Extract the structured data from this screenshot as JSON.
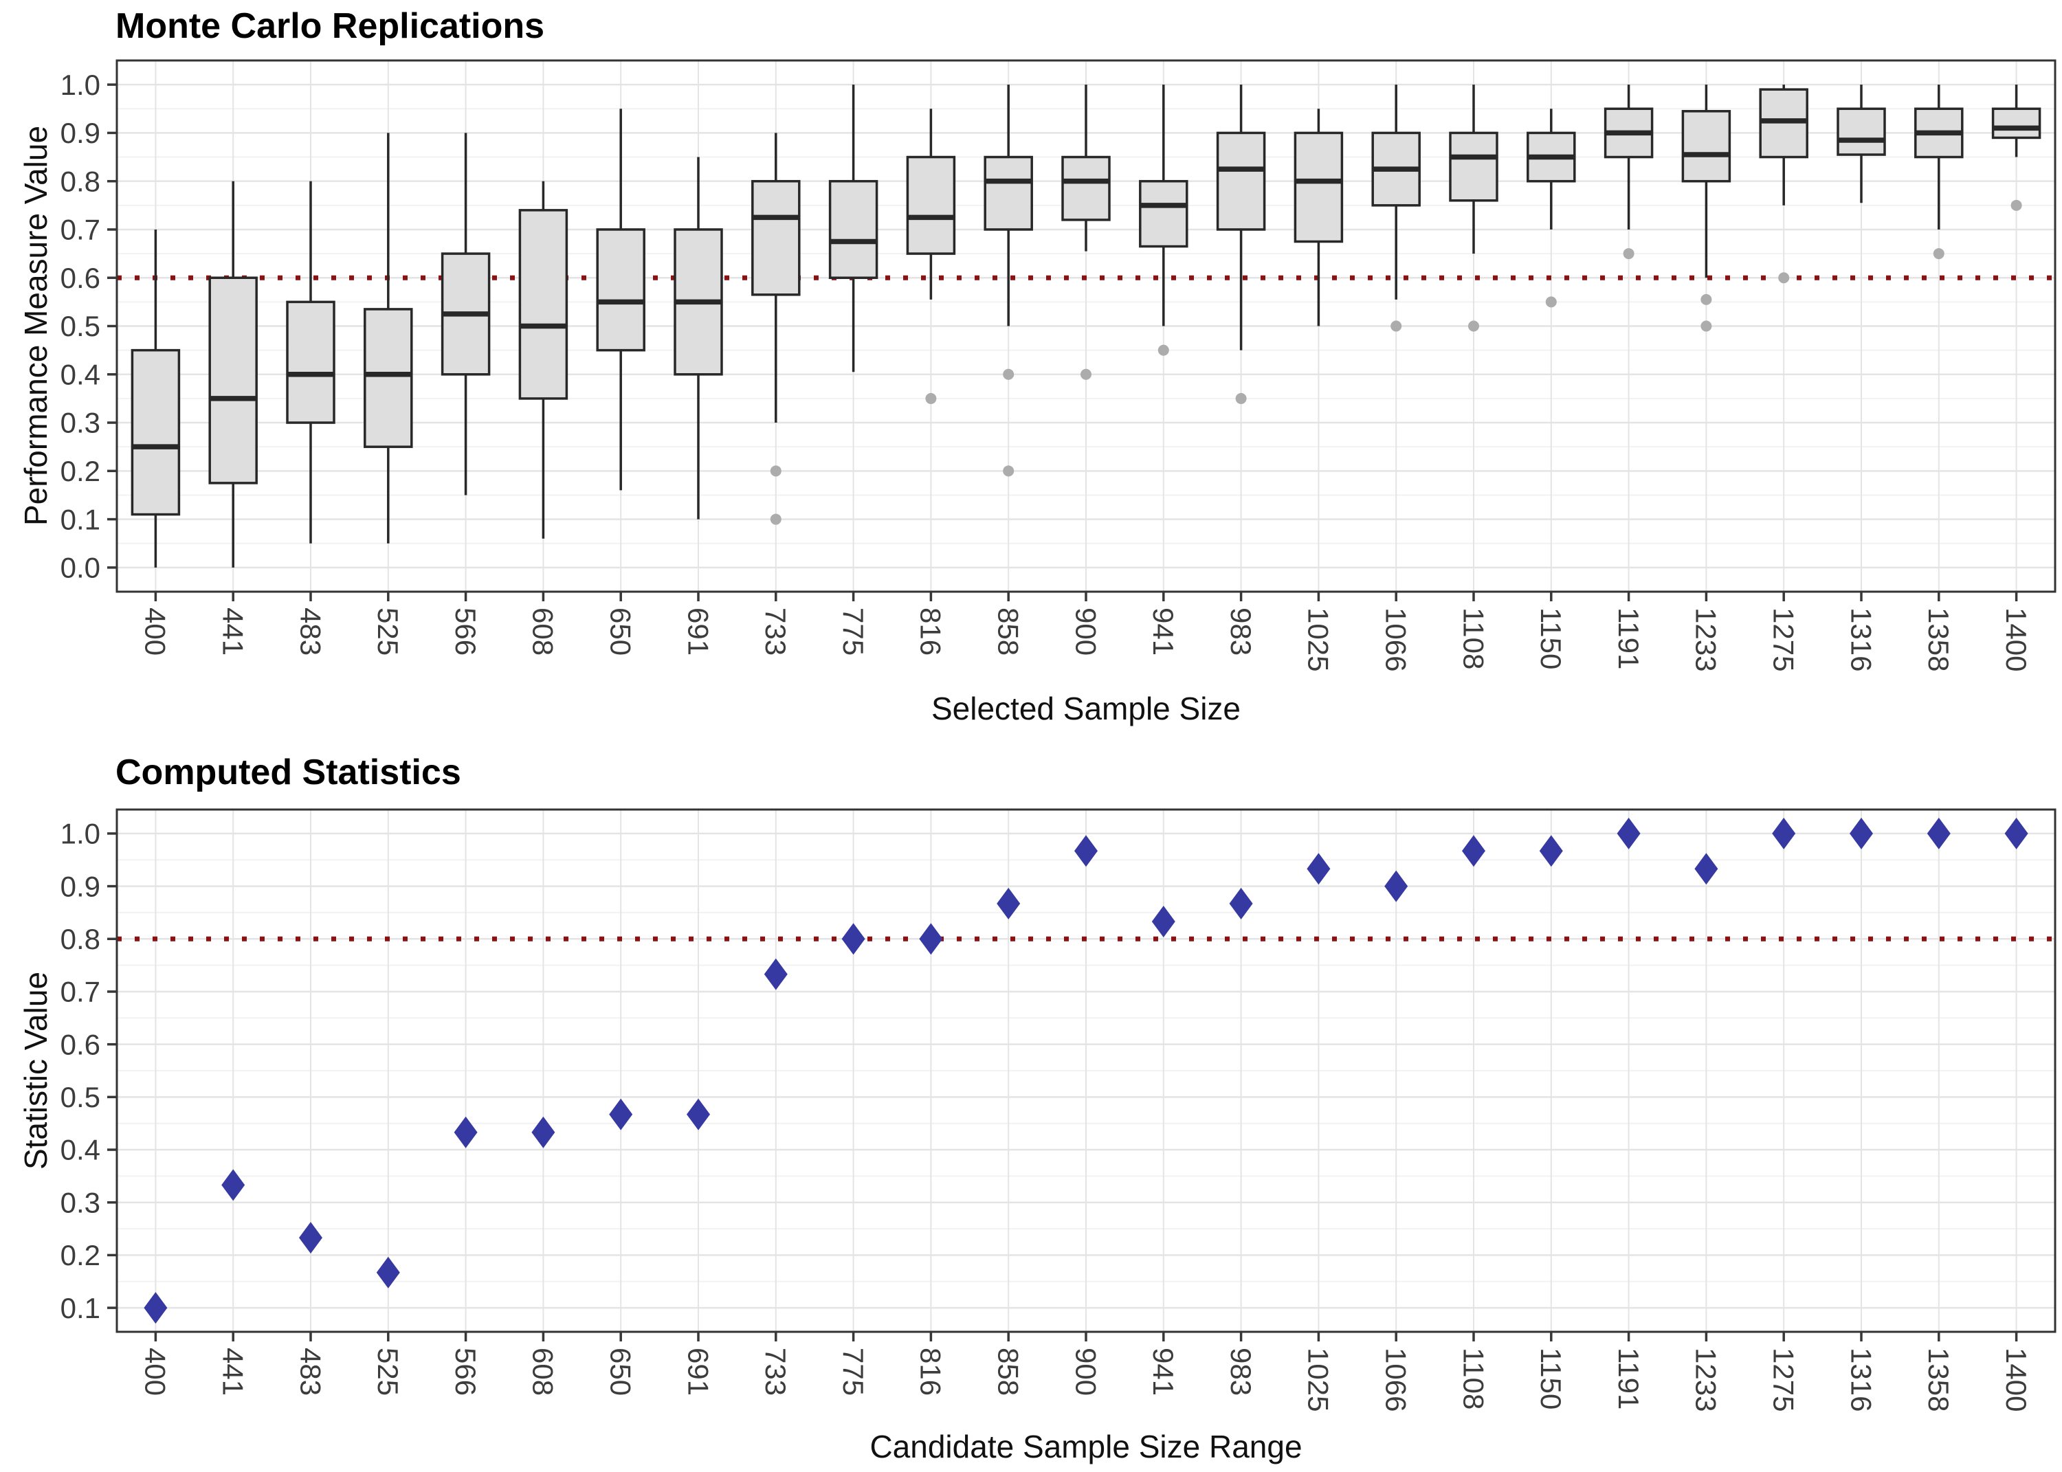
{
  "colors": {
    "background": "#FFFFFF",
    "panel_border": "#333333",
    "grid_major": "#E4E4E4",
    "grid_minor": "#F2F2F2",
    "tick_mark": "#383838",
    "tick_label": "#3C3C3C",
    "axis_title": "#111111",
    "chart_title": "#000000",
    "box_fill": "#DEDEDE",
    "box_stroke": "#282828",
    "outlier": "#ACACAC",
    "ref_line": "#8B1212",
    "diamond": "#3639A2"
  },
  "chart_data": [
    {
      "id": "monte-carlo",
      "type": "box",
      "title": "Monte Carlo Replications",
      "xlabel": "Selected Sample Size",
      "ylabel": "Performance Measure Value",
      "ref_line": 0.6,
      "ylim": [
        0,
        1
      ],
      "grid": "on",
      "y_ticks": [
        {
          "v": 0.0,
          "label": "0.0"
        },
        {
          "v": 0.1,
          "label": "0.1"
        },
        {
          "v": 0.2,
          "label": "0.2"
        },
        {
          "v": 0.3,
          "label": "0.3"
        },
        {
          "v": 0.4,
          "label": "0.4"
        },
        {
          "v": 0.5,
          "label": "0.5"
        },
        {
          "v": 0.6,
          "label": "0.6"
        },
        {
          "v": 0.7,
          "label": "0.7"
        },
        {
          "v": 0.8,
          "label": "0.8"
        },
        {
          "v": 0.9,
          "label": "0.9"
        },
        {
          "v": 1.0,
          "label": "1.0"
        }
      ],
      "categories": [
        "400",
        "441",
        "483",
        "525",
        "566",
        "608",
        "650",
        "691",
        "733",
        "775",
        "816",
        "858",
        "900",
        "941",
        "983",
        "1025",
        "1066",
        "1108",
        "1150",
        "1191",
        "1233",
        "1275",
        "1316",
        "1358",
        "1400"
      ],
      "boxes": [
        {
          "lo": 0.0,
          "q1": 0.11,
          "med": 0.25,
          "q3": 0.45,
          "hi": 0.7,
          "out": []
        },
        {
          "lo": 0.0,
          "q1": 0.175,
          "med": 0.35,
          "q3": 0.6,
          "hi": 0.8,
          "out": []
        },
        {
          "lo": 0.05,
          "q1": 0.3,
          "med": 0.4,
          "q3": 0.55,
          "hi": 0.8,
          "out": []
        },
        {
          "lo": 0.05,
          "q1": 0.25,
          "med": 0.4,
          "q3": 0.535,
          "hi": 0.9,
          "out": []
        },
        {
          "lo": 0.15,
          "q1": 0.4,
          "med": 0.525,
          "q3": 0.65,
          "hi": 0.9,
          "out": []
        },
        {
          "lo": 0.06,
          "q1": 0.35,
          "med": 0.5,
          "q3": 0.74,
          "hi": 0.8,
          "out": []
        },
        {
          "lo": 0.16,
          "q1": 0.45,
          "med": 0.55,
          "q3": 0.7,
          "hi": 0.95,
          "out": []
        },
        {
          "lo": 0.1,
          "q1": 0.4,
          "med": 0.55,
          "q3": 0.7,
          "hi": 0.85,
          "out": []
        },
        {
          "lo": 0.3,
          "q1": 0.565,
          "med": 0.725,
          "q3": 0.8,
          "hi": 0.9,
          "out": [
            0.2,
            0.1
          ]
        },
        {
          "lo": 0.405,
          "q1": 0.6,
          "med": 0.675,
          "q3": 0.8,
          "hi": 1.0,
          "out": []
        },
        {
          "lo": 0.555,
          "q1": 0.65,
          "med": 0.725,
          "q3": 0.85,
          "hi": 0.95,
          "out": [
            0.35
          ]
        },
        {
          "lo": 0.5,
          "q1": 0.7,
          "med": 0.8,
          "q3": 0.85,
          "hi": 1.0,
          "out": [
            0.4,
            0.2
          ]
        },
        {
          "lo": 0.655,
          "q1": 0.72,
          "med": 0.8,
          "q3": 0.85,
          "hi": 1.0,
          "out": [
            0.4
          ]
        },
        {
          "lo": 0.5,
          "q1": 0.665,
          "med": 0.75,
          "q3": 0.8,
          "hi": 1.0,
          "out": [
            0.45
          ]
        },
        {
          "lo": 0.45,
          "q1": 0.7,
          "med": 0.825,
          "q3": 0.9,
          "hi": 1.0,
          "out": [
            0.35
          ]
        },
        {
          "lo": 0.5,
          "q1": 0.675,
          "med": 0.8,
          "q3": 0.9,
          "hi": 0.95,
          "out": []
        },
        {
          "lo": 0.555,
          "q1": 0.75,
          "med": 0.825,
          "q3": 0.9,
          "hi": 1.0,
          "out": [
            0.5
          ]
        },
        {
          "lo": 0.65,
          "q1": 0.76,
          "med": 0.85,
          "q3": 0.9,
          "hi": 1.0,
          "out": [
            0.5
          ]
        },
        {
          "lo": 0.7,
          "q1": 0.8,
          "med": 0.85,
          "q3": 0.9,
          "hi": 0.95,
          "out": [
            0.55
          ]
        },
        {
          "lo": 0.7,
          "q1": 0.85,
          "med": 0.9,
          "q3": 0.95,
          "hi": 1.0,
          "out": [
            0.65
          ]
        },
        {
          "lo": 0.6,
          "q1": 0.8,
          "med": 0.855,
          "q3": 0.945,
          "hi": 1.0,
          "out": [
            0.555,
            0.5
          ]
        },
        {
          "lo": 0.75,
          "q1": 0.85,
          "med": 0.925,
          "q3": 0.99,
          "hi": 1.0,
          "out": [
            0.6
          ]
        },
        {
          "lo": 0.755,
          "q1": 0.855,
          "med": 0.885,
          "q3": 0.95,
          "hi": 1.0,
          "out": []
        },
        {
          "lo": 0.7,
          "q1": 0.85,
          "med": 0.9,
          "q3": 0.95,
          "hi": 1.0,
          "out": [
            0.65
          ]
        },
        {
          "lo": 0.85,
          "q1": 0.89,
          "med": 0.91,
          "q3": 0.95,
          "hi": 1.0,
          "out": [
            0.75
          ]
        }
      ]
    },
    {
      "id": "computed-statistics",
      "type": "scatter",
      "title": "Computed Statistics",
      "xlabel": "Candidate Sample Size Range",
      "ylabel": "Statistic Value",
      "ref_line": 0.8,
      "ylim": [
        0.1,
        1
      ],
      "grid": "on",
      "marker": "diamond",
      "y_ticks": [
        {
          "v": 0.1,
          "label": "0.1"
        },
        {
          "v": 0.2,
          "label": "0.2"
        },
        {
          "v": 0.3,
          "label": "0.3"
        },
        {
          "v": 0.4,
          "label": "0.4"
        },
        {
          "v": 0.5,
          "label": "0.5"
        },
        {
          "v": 0.6,
          "label": "0.6"
        },
        {
          "v": 0.7,
          "label": "0.7"
        },
        {
          "v": 0.8,
          "label": "0.8"
        },
        {
          "v": 0.9,
          "label": "0.9"
        },
        {
          "v": 1.0,
          "label": "1.0"
        }
      ],
      "categories": [
        "400",
        "441",
        "483",
        "525",
        "566",
        "608",
        "650",
        "691",
        "733",
        "775",
        "816",
        "858",
        "900",
        "941",
        "983",
        "1025",
        "1066",
        "1108",
        "1150",
        "1191",
        "1233",
        "1275",
        "1316",
        "1358",
        "1400"
      ],
      "values": [
        0.1,
        0.333,
        0.233,
        0.167,
        0.433,
        0.433,
        0.467,
        0.467,
        0.733,
        0.8,
        0.8,
        0.867,
        0.967,
        0.833,
        0.867,
        0.933,
        0.9,
        0.967,
        0.967,
        1.0,
        0.933,
        1.0,
        1.0,
        1.0,
        1.0
      ]
    }
  ]
}
